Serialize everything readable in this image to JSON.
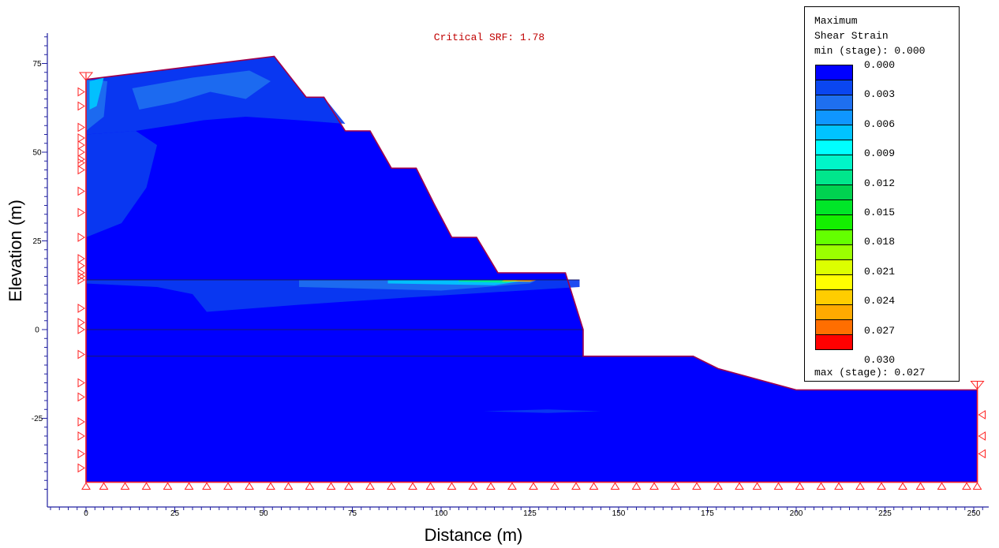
{
  "chart_data": {
    "type": "contour",
    "title": "Critical SRF: 1.78",
    "xlabel": "Distance (m)",
    "ylabel": "Elevation (m)",
    "xlim": [
      -10,
      255
    ],
    "ylim": [
      -46,
      83
    ],
    "x_ticks": [
      "0",
      "25",
      "50",
      "75",
      "100",
      "125",
      "150",
      "175",
      "200",
      "225",
      "250"
    ],
    "x_tick_values": [
      0,
      25,
      50,
      75,
      100,
      125,
      150,
      175,
      200,
      225,
      250
    ],
    "y_ticks": [
      "75",
      "50",
      "25",
      "0",
      "-25"
    ],
    "y_tick_values": [
      75,
      50,
      25,
      0,
      -25
    ],
    "legend": {
      "header": [
        "Maximum",
        "Shear Strain",
        "min (stage): 0.000"
      ],
      "footer": "max (stage): 0.027",
      "labels": [
        "0.000",
        "0.003",
        "0.006",
        "0.009",
        "0.012",
        "0.015",
        "0.018",
        "0.021",
        "0.024",
        "0.027",
        "0.030"
      ],
      "colors": [
        "#0000ff",
        "#0a46f0",
        "#1e6ff0",
        "#0f96ff",
        "#00c3ff",
        "#00ffff",
        "#00f5c8",
        "#00e68c",
        "#00d250",
        "#00e628",
        "#14f000",
        "#64ff00",
        "#9bff00",
        "#dcff00",
        "#ffff00",
        "#ffcd00",
        "#ffaa00",
        "#ff6e00",
        "#ff0000"
      ]
    },
    "slope_boundary": [
      [
        0,
        70.5
      ],
      [
        53,
        77
      ],
      [
        62,
        65.5
      ],
      [
        67,
        65.5
      ],
      [
        73,
        56
      ],
      [
        80,
        56
      ],
      [
        86,
        45.5
      ],
      [
        93,
        45.5
      ],
      [
        98,
        35.5
      ],
      [
        103,
        26
      ],
      [
        110,
        26
      ],
      [
        116,
        16
      ],
      [
        135,
        16
      ],
      [
        140,
        0
      ],
      [
        140,
        -7.5
      ],
      [
        171,
        -7.5
      ],
      [
        178,
        -11
      ],
      [
        200,
        -17
      ],
      [
        251,
        -17
      ],
      [
        251,
        -43
      ],
      [
        0,
        -43
      ]
    ],
    "material_boundaries": [
      [
        [
          0,
          0
        ],
        [
          140,
          0
        ]
      ],
      [
        [
          0,
          -7.5
        ],
        [
          140,
          -7.5
        ]
      ],
      [
        [
          0,
          14
        ],
        [
          139,
          14
        ]
      ]
    ],
    "contour_zones": [
      {
        "level": 0.003,
        "color": "#0a3cf0",
        "polygon": [
          [
            0,
            70.5
          ],
          [
            53,
            77
          ],
          [
            62,
            65.5
          ],
          [
            67,
            65.5
          ],
          [
            73,
            58
          ],
          [
            60,
            59
          ],
          [
            45,
            60
          ],
          [
            33,
            59
          ],
          [
            27,
            58
          ],
          [
            14,
            56
          ],
          [
            0,
            55
          ]
        ]
      },
      {
        "level": 0.003,
        "color": "#0a3cf0",
        "polygon": [
          [
            0,
            55
          ],
          [
            14,
            56
          ],
          [
            20,
            52
          ],
          [
            17,
            40
          ],
          [
            10,
            30
          ],
          [
            0,
            26
          ]
        ]
      },
      {
        "level": 0.003,
        "color": "#0a3cf0",
        "polygon": [
          [
            0,
            14
          ],
          [
            139,
            14
          ],
          [
            139,
            12
          ],
          [
            90,
            9
          ],
          [
            60,
            7
          ],
          [
            34,
            5
          ],
          [
            30,
            10
          ],
          [
            20,
            12
          ],
          [
            0,
            13
          ]
        ]
      },
      {
        "level": 0.006,
        "color": "#1e6ff0",
        "polygon": [
          [
            13,
            68
          ],
          [
            30,
            71
          ],
          [
            46,
            73
          ],
          [
            52,
            70
          ],
          [
            45,
            65
          ],
          [
            35,
            67
          ],
          [
            25,
            64
          ],
          [
            15,
            62
          ]
        ]
      },
      {
        "level": 0.006,
        "color": "#1e6ff0",
        "polygon": [
          [
            0,
            70.5
          ],
          [
            6,
            70
          ],
          [
            5,
            60
          ],
          [
            0,
            56
          ]
        ]
      },
      {
        "level": 0.006,
        "color": "#1e6ff0",
        "polygon": [
          [
            60,
            12
          ],
          [
            100,
            11
          ],
          [
            125,
            13
          ],
          [
            127,
            14
          ],
          [
            60,
            14
          ]
        ]
      },
      {
        "level": 0.009,
        "color": "#00c8ff",
        "polygon": [
          [
            1,
            70
          ],
          [
            5,
            71
          ],
          [
            3,
            63
          ],
          [
            1,
            62
          ]
        ]
      },
      {
        "level": 0.009,
        "color": "#00c8ff",
        "polygon": [
          [
            85,
            13
          ],
          [
            115,
            12.5
          ],
          [
            125,
            14
          ],
          [
            85,
            14
          ]
        ]
      },
      {
        "level": 0.015,
        "color": "#00f08c",
        "polygon": [
          [
            105,
            13.5
          ],
          [
            118,
            13.2
          ],
          [
            124,
            14
          ],
          [
            105,
            14
          ]
        ]
      },
      {
        "level": 0.024,
        "color": "#ffc800",
        "polygon": [
          [
            117,
            13.6
          ],
          [
            125,
            13.5
          ],
          [
            127,
            14
          ],
          [
            118,
            14
          ]
        ]
      },
      {
        "level": 0.027,
        "color": "#ff6e00",
        "polygon": [
          [
            121,
            13.8
          ],
          [
            126,
            13.7
          ],
          [
            127,
            14
          ],
          [
            122,
            14
          ]
        ]
      },
      {
        "level": 0.003,
        "color": "#0a3cf0",
        "polygon": [
          [
            112,
            -23
          ],
          [
            130,
            -22.5
          ],
          [
            145,
            -23
          ],
          [
            130,
            -23.5
          ]
        ]
      }
    ],
    "boundary_conditions": {
      "left_x": 0,
      "right_x": 251,
      "base_y": -43,
      "left_ys": [
        67,
        63,
        57,
        54,
        52,
        50,
        48,
        47,
        45,
        39,
        33,
        26,
        20,
        18,
        16,
        15,
        14,
        6,
        2,
        0,
        -7,
        -15,
        -19,
        -26,
        -30,
        -35,
        -39
      ],
      "right_ys": [
        -24,
        -30,
        -35
      ],
      "base_xs": [
        0,
        5,
        11,
        17,
        23,
        29,
        34,
        40,
        46,
        52,
        57,
        63,
        69,
        74,
        80,
        86,
        92,
        97,
        103,
        109,
        114,
        120,
        126,
        132,
        138,
        143,
        149,
        155,
        160,
        166,
        172,
        178,
        184,
        189,
        195,
        201,
        207,
        212,
        218,
        224,
        230,
        235,
        241,
        248,
        251
      ],
      "top_markers": [
        [
          0,
          72
        ],
        [
          251,
          -15
        ]
      ]
    }
  }
}
